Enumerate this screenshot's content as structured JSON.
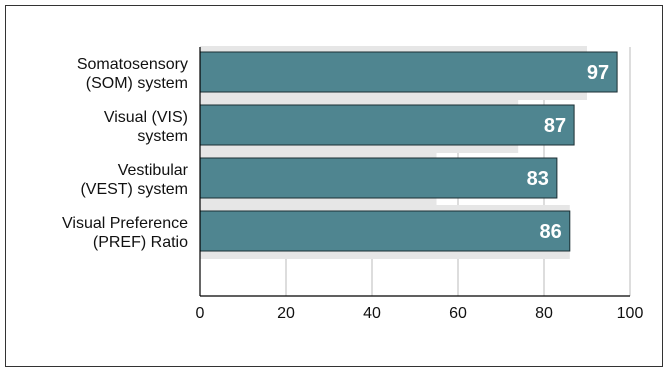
{
  "chart_data": {
    "type": "bar",
    "orientation": "horizontal",
    "categories": [
      [
        "Somatosensory",
        "(SOM) system"
      ],
      [
        "Visual (VIS)",
        "system"
      ],
      [
        "Vestibular",
        "(VEST) system"
      ],
      [
        "Visual Preference",
        "(PREF) Ratio"
      ]
    ],
    "values": [
      97,
      87,
      83,
      86
    ],
    "data_labels": [
      "97",
      "87",
      "83",
      "86"
    ],
    "background_values": [
      90,
      74,
      55,
      86
    ],
    "xlim": [
      0,
      100
    ],
    "xticks": [
      0,
      20,
      40,
      60,
      80,
      100
    ],
    "xtick_labels": [
      "0",
      "20",
      "40",
      "60",
      "80",
      "100"
    ],
    "grid": "vertical",
    "title": "",
    "xlabel": "",
    "ylabel": ""
  },
  "colors": {
    "bar": "#4f8590",
    "background_bar": "#e6e6e6",
    "axis": "#000000",
    "frame": "#333333"
  }
}
